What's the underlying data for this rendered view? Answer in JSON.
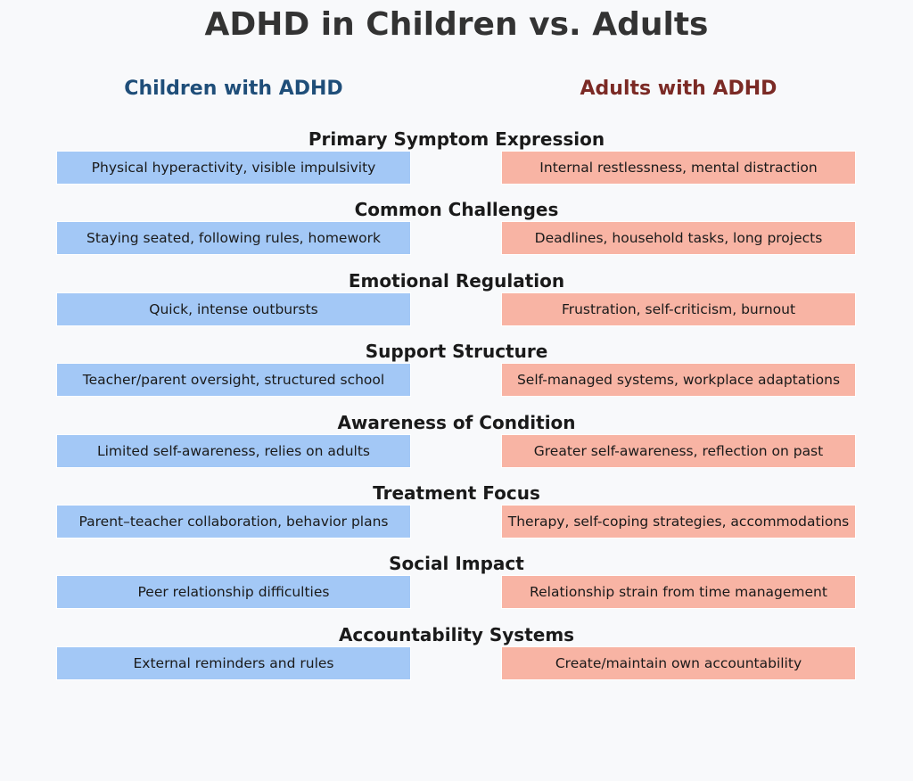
{
  "title": "ADHD in Children vs. Adults",
  "columns": {
    "left": "Children with ADHD",
    "right": "Adults with ADHD"
  },
  "colors": {
    "left_cell": "#a3c8f6",
    "right_cell": "#f8b4a4",
    "left_header": "#1f4e79",
    "right_header": "#7b2a25"
  },
  "rows": [
    {
      "category": "Primary Symptom Expression",
      "children": "Physical hyperactivity, visible impulsivity",
      "adults": "Internal restlessness, mental distraction"
    },
    {
      "category": "Common Challenges",
      "children": "Staying seated, following rules, homework",
      "adults": "Deadlines, household tasks, long projects"
    },
    {
      "category": "Emotional Regulation",
      "children": "Quick, intense outbursts",
      "adults": "Frustration, self-criticism, burnout"
    },
    {
      "category": "Support Structure",
      "children": "Teacher/parent oversight, structured school",
      "adults": "Self-managed systems, workplace adaptations"
    },
    {
      "category": "Awareness of Condition",
      "children": "Limited self-awareness, relies on adults",
      "adults": "Greater self-awareness, reflection on past"
    },
    {
      "category": "Treatment Focus",
      "children": "Parent–teacher collaboration, behavior plans",
      "adults": "Therapy, self-coping strategies, accommodations"
    },
    {
      "category": "Social Impact",
      "children": "Peer relationship difficulties",
      "adults": "Relationship strain from time management"
    },
    {
      "category": "Accountability Systems",
      "children": "External reminders and rules",
      "adults": "Create/maintain own accountability"
    }
  ]
}
